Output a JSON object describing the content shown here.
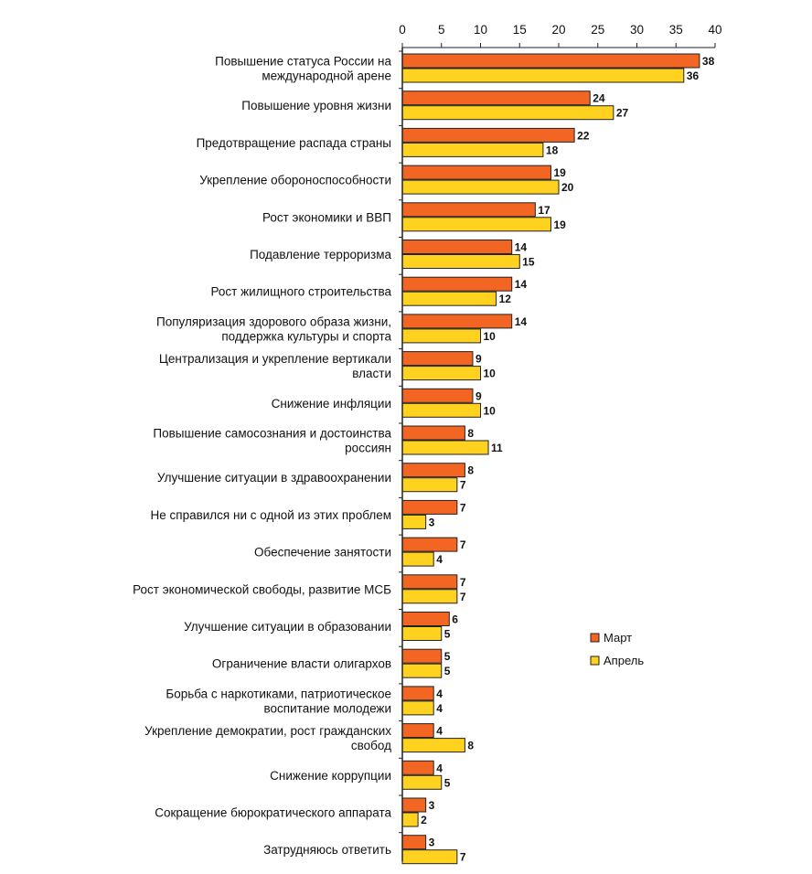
{
  "chart_data": {
    "type": "bar",
    "orientation": "horizontal",
    "xlim": [
      0,
      40
    ],
    "ticks": [
      "0",
      "5",
      "10",
      "15",
      "20",
      "25",
      "30",
      "35",
      "40"
    ],
    "grid": false,
    "legend_position": "right",
    "categories": [
      [
        "Повышение статуса России на",
        "международной арене"
      ],
      [
        "Повышение уровня жизни"
      ],
      [
        "Предотвращение распада страны"
      ],
      [
        "Укрепление обороноспособности"
      ],
      [
        "Рост экономики и ВВП"
      ],
      [
        "Подавление терроризма"
      ],
      [
        "Рост жилищного строительства"
      ],
      [
        "Популяризация здорового образа жизни,",
        "поддержка культуры и спорта"
      ],
      [
        "Централизация и укрепление вертикали",
        "власти"
      ],
      [
        "Снижение инфляции"
      ],
      [
        "Повышение самосознания и достоинства",
        "россиян"
      ],
      [
        "Улучшение ситуации в здравоохранении"
      ],
      [
        "Не справился ни с одной из этих проблем"
      ],
      [
        "Обеспечение занятости"
      ],
      [
        "Рост экономической свободы, развитие МСБ"
      ],
      [
        "Улучшение ситуации в образовании"
      ],
      [
        "Ограничение власти олигархов"
      ],
      [
        "Борьба с наркотиками, патриотическое",
        "воспитание молодежи"
      ],
      [
        "Укрепление демократии, рост гражданских",
        "свобод"
      ],
      [
        "Снижение коррупции"
      ],
      [
        "Сокращение бюрократического аппарата"
      ],
      [
        "Затрудняюсь ответить"
      ]
    ],
    "series": [
      {
        "name": "Март",
        "color": "#f26522",
        "values": [
          38,
          24,
          22,
          19,
          17,
          14,
          14,
          14,
          9,
          9,
          8,
          8,
          7,
          7,
          7,
          6,
          5,
          4,
          4,
          4,
          3,
          3
        ]
      },
      {
        "name": "Апрель",
        "color": "#ffd21f",
        "values": [
          36,
          27,
          18,
          20,
          19,
          15,
          12,
          10,
          10,
          10,
          11,
          7,
          3,
          4,
          7,
          5,
          5,
          4,
          8,
          5,
          2,
          7
        ]
      }
    ]
  }
}
